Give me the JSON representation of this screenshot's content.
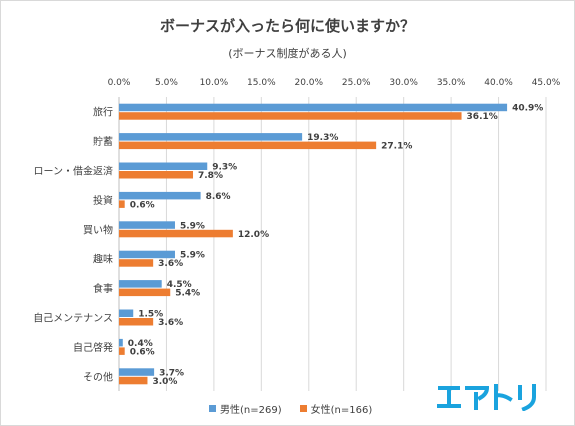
{
  "chart_data": {
    "type": "bar",
    "orientation": "horizontal",
    "title": "ボーナスが入ったら何に使いますか？",
    "subtitle": "(ボーナス制度がある人)",
    "categories": [
      "旅行",
      "貯蓄",
      "ローン・借金返済",
      "投資",
      "買い物",
      "趣味",
      "食事",
      "自己メンテナンス",
      "自己啓発",
      "その他"
    ],
    "series": [
      {
        "name": "男性(n=269)",
        "color": "#5b9bd5",
        "values": [
          40.9,
          19.3,
          9.3,
          8.6,
          5.9,
          5.9,
          4.5,
          1.5,
          0.4,
          3.7
        ],
        "labels": [
          "40.9%",
          "19.3%",
          "9.3%",
          "8.6%",
          "5.9%",
          "5.9%",
          "4.5%",
          "1.5%",
          "0.4%",
          "3.7%"
        ]
      },
      {
        "name": "女性(n=166)",
        "color": "#ed7d31",
        "values": [
          36.1,
          27.1,
          7.8,
          0.6,
          12.0,
          3.6,
          5.4,
          3.6,
          0.6,
          3.0
        ],
        "labels": [
          "36.1%",
          "27.1%",
          "7.8%",
          "0.6%",
          "12.0%",
          "3.6%",
          "5.4%",
          "3.6%",
          "0.6%",
          "3.0%"
        ]
      }
    ],
    "xlim": [
      0,
      45
    ],
    "xticks": [
      "0.0%",
      "5.0%",
      "10.0%",
      "15.0%",
      "20.0%",
      "25.0%",
      "30.0%",
      "35.0%",
      "40.0%",
      "45.0%"
    ],
    "grid": true,
    "legend_position": "bottom"
  },
  "logo_text": "エアトリ",
  "logo_color": "#1aa3de"
}
